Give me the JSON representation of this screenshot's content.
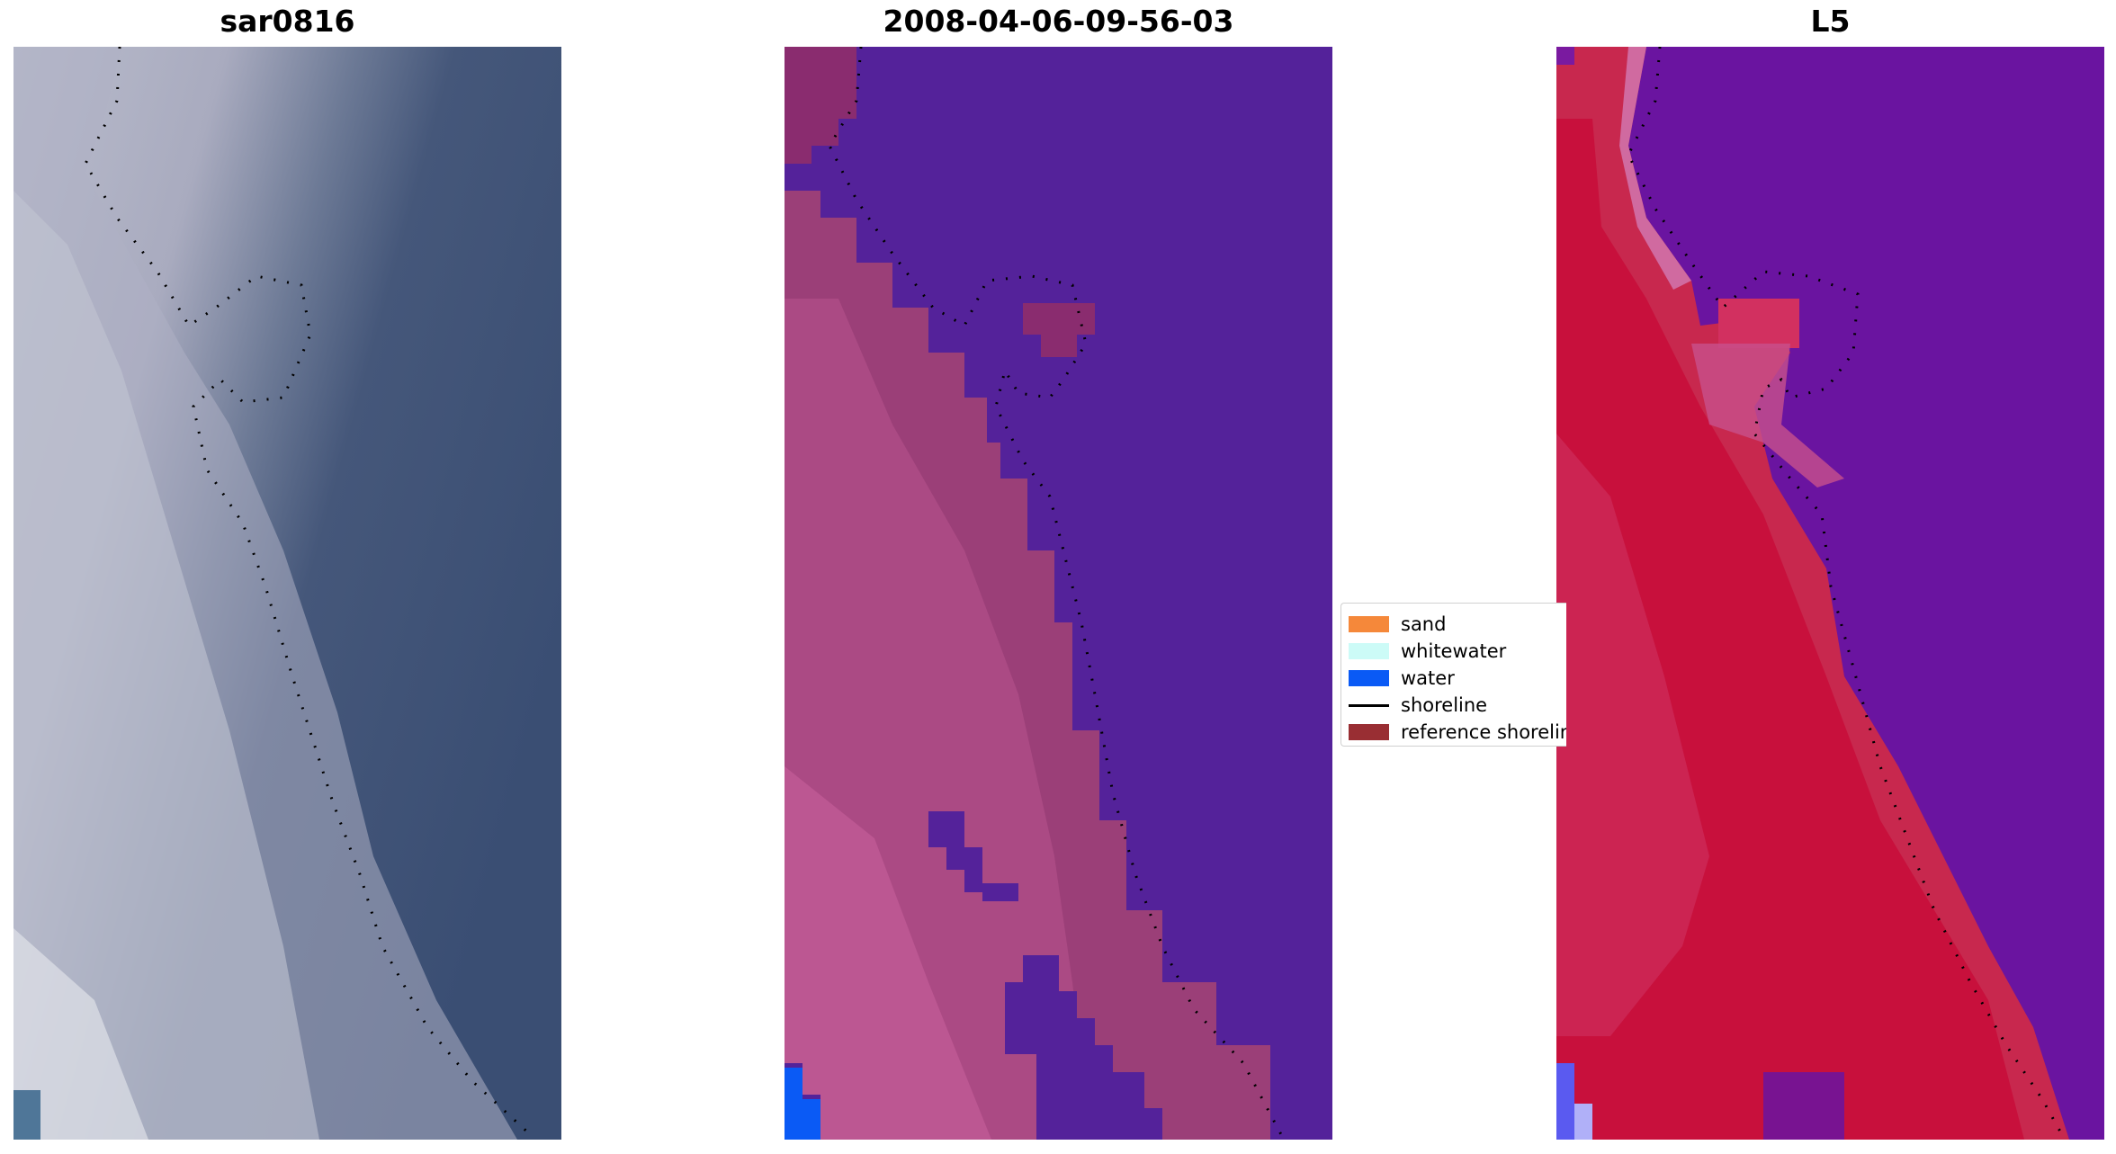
{
  "panels": [
    {
      "title": "sar0816"
    },
    {
      "title": "2008-04-06-09-56-03"
    },
    {
      "title": "L5"
    }
  ],
  "legend": {
    "items": [
      {
        "label": "sand",
        "color": "#f5883a",
        "kind": "patch"
      },
      {
        "label": "whitewater",
        "color": "#ccfbf7",
        "kind": "patch"
      },
      {
        "label": "water",
        "color": "#0a5af5",
        "kind": "patch"
      },
      {
        "label": "shoreline",
        "color": "#000000",
        "kind": "line"
      },
      {
        "label": "reference shoreline",
        "color": "#992e33",
        "kind": "patch"
      }
    ]
  },
  "colors": {
    "rgb_water": "#3f5478",
    "rgb_sand": "#b9bccc",
    "class_water": "#54229a",
    "class_sand": "#9b3f78",
    "class_light_sand": "#c05a96",
    "class_blue": "#0a5af5",
    "mndwi_land": "#c8103c",
    "mndwi_water": "#6a14a0",
    "shoreline_dots": "#000000"
  }
}
